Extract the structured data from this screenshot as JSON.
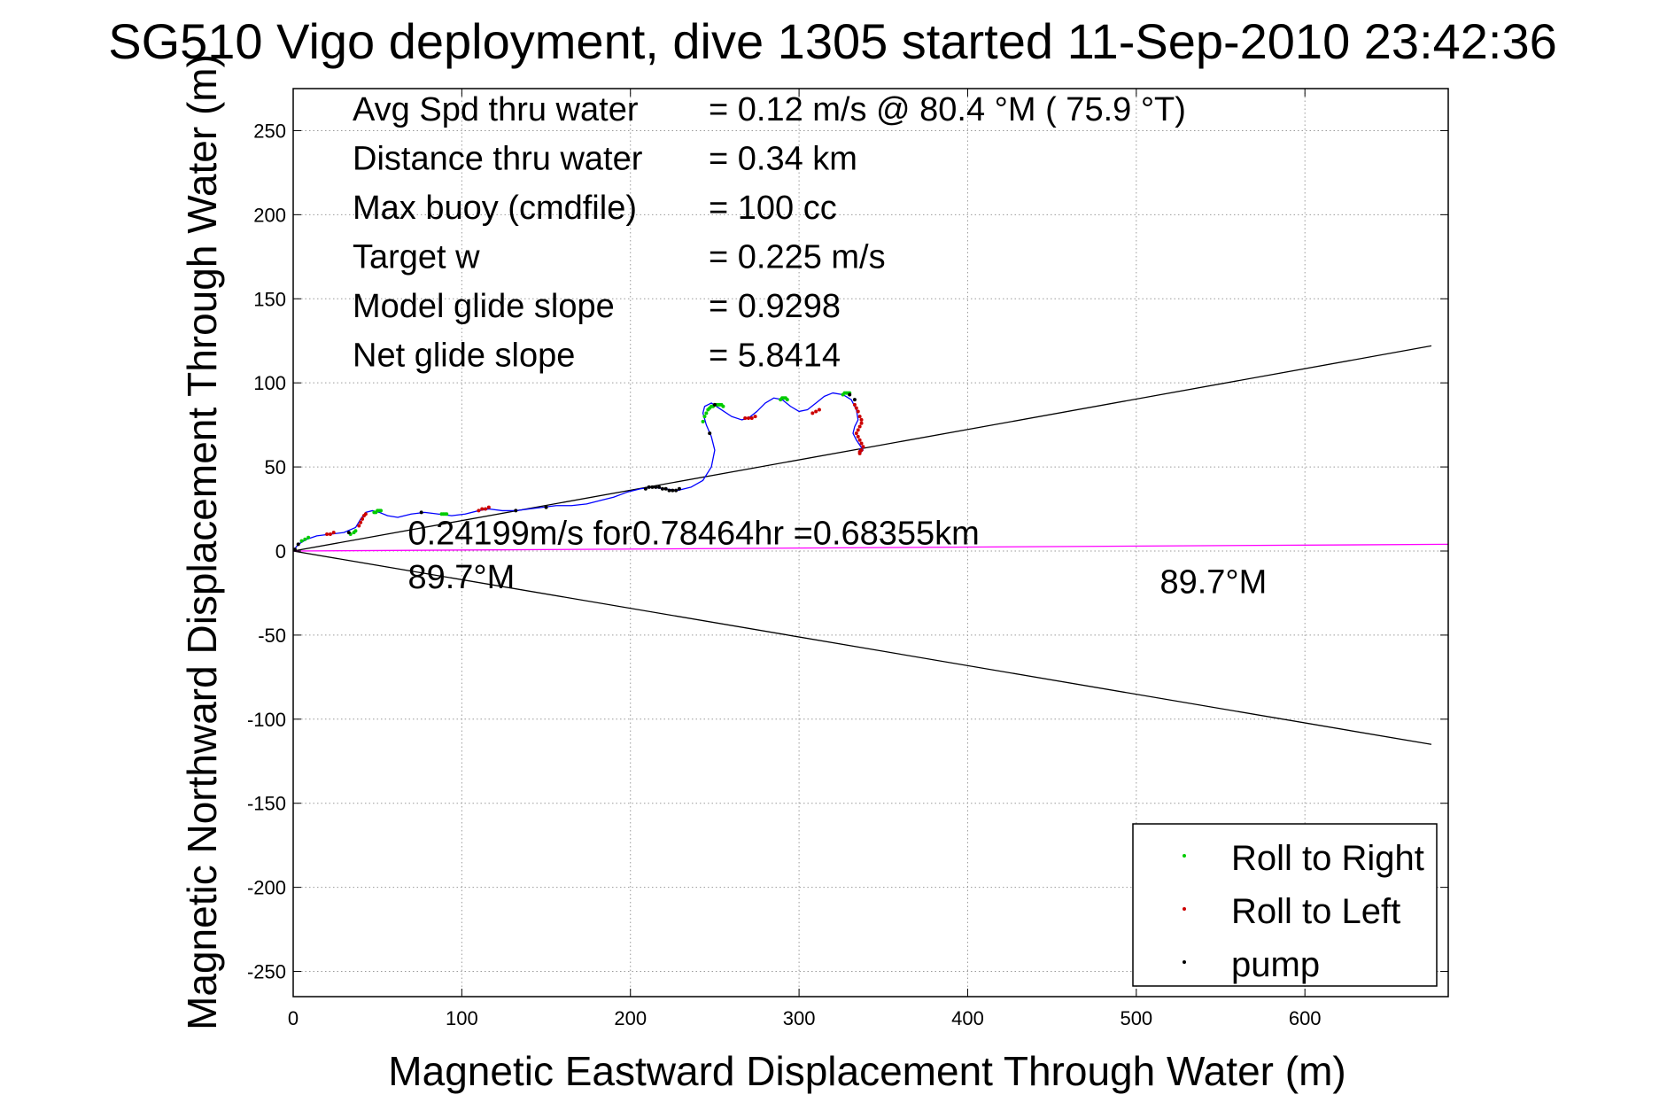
{
  "chart_data": {
    "type": "scatter",
    "title": "SG510 Vigo deployment, dive 1305 started 11-Sep-2010 23:42:36",
    "xlabel": "Magnetic Eastward Displacement Through Water (m)",
    "ylabel": "Magnetic Northward Displacement Through Water (m)",
    "xlim": [
      0,
      685
    ],
    "ylim": [
      -265,
      275
    ],
    "xticks": [
      0,
      100,
      200,
      300,
      400,
      500,
      600
    ],
    "yticks": [
      250,
      200,
      150,
      100,
      50,
      0,
      -50,
      -100,
      -150,
      -200,
      -250
    ],
    "grid": true,
    "legend_position": "bottom-right",
    "info_lines": [
      {
        "label": "Avg Spd thru water",
        "value": "=  0.12 m/s @  80.4 °M ( 75.9 °T)"
      },
      {
        "label": "Distance thru water",
        "value": "=  0.34 km"
      },
      {
        "label": "Max buoy (cmdfile)",
        "value": "= 100 cc"
      },
      {
        "label": "Target w",
        "value": "= 0.225 m/s"
      },
      {
        "label": "Model glide slope",
        "value": "= 0.9298"
      },
      {
        "label": "Net glide slope",
        "value": "= 5.8414"
      }
    ],
    "annotations": [
      {
        "text": "0.24199m/s for0.78464hr =0.68355km",
        "x": 68,
        "y": 4
      },
      {
        "text": "89.7°M",
        "x": 68,
        "y": -22
      },
      {
        "text": "89.7°M",
        "x": 514,
        "y": -25
      }
    ],
    "reference_lines": [
      {
        "name": "upper-bound-line",
        "x": [
          0,
          675
        ],
        "y": [
          0,
          122
        ],
        "color": "#000000"
      },
      {
        "name": "lower-bound-line",
        "x": [
          0,
          675
        ],
        "y": [
          0,
          -115
        ],
        "color": "#000000"
      },
      {
        "name": "current-line",
        "x": [
          0,
          685
        ],
        "y": [
          0,
          4
        ],
        "color": "#ff00ff"
      }
    ],
    "track": {
      "color": "#0000ff",
      "x": [
        0,
        3,
        8,
        14,
        22,
        30,
        37,
        40,
        43,
        47,
        51,
        56,
        62,
        70,
        78,
        86,
        94,
        102,
        110,
        116,
        124,
        132,
        140,
        148,
        156,
        165,
        174,
        182,
        190,
        198,
        206,
        213,
        220,
        228,
        236,
        243,
        248,
        250,
        248,
        245,
        243,
        244,
        248,
        254,
        260,
        266,
        270,
        275,
        280,
        285,
        290,
        295,
        300,
        305,
        310,
        315,
        320,
        326,
        331,
        334,
        335,
        333,
        332,
        334,
        336,
        338,
        336,
        336
      ],
      "y": [
        0,
        4,
        7,
        9,
        10,
        11,
        14,
        19,
        23,
        24,
        23,
        21,
        20,
        22,
        23,
        22,
        21,
        22,
        24,
        25,
        24,
        24,
        25,
        26,
        27,
        27,
        28,
        30,
        32,
        35,
        37,
        38,
        37,
        36,
        38,
        42,
        50,
        60,
        68,
        75,
        82,
        86,
        88,
        84,
        80,
        78,
        79,
        83,
        88,
        91,
        90,
        86,
        83,
        84,
        88,
        92,
        94,
        93,
        90,
        84,
        78,
        74,
        70,
        66,
        63,
        60,
        58,
        61
      ]
    },
    "series": [
      {
        "name": "Roll to Right",
        "color": "#00cc00",
        "x": [
          5,
          7,
          9,
          34,
          36,
          37,
          48,
          49,
          50,
          51,
          52,
          88,
          89,
          90,
          91,
          243,
          244,
          245,
          246,
          247,
          248,
          249,
          250,
          251,
          252,
          253,
          254,
          255,
          289,
          290,
          291,
          292,
          293,
          326,
          327,
          328,
          329,
          330
        ],
        "y": [
          6,
          7,
          8,
          10,
          11,
          12,
          23,
          23,
          24,
          24,
          24,
          22,
          22,
          22,
          22,
          77,
          80,
          82,
          84,
          85,
          86,
          86,
          87,
          87,
          87,
          87,
          87,
          86,
          90,
          91,
          91,
          91,
          90,
          93,
          94,
          94,
          94,
          94
        ]
      },
      {
        "name": "Roll to Left",
        "color": "#cc0000",
        "x": [
          20,
          22,
          24,
          39,
          40,
          41,
          42,
          43,
          110,
          112,
          114,
          116,
          268,
          270,
          272,
          274,
          308,
          310,
          312,
          333,
          334,
          335,
          336,
          337,
          337,
          336,
          335,
          334,
          335,
          336,
          337,
          338,
          337,
          336,
          336
        ],
        "y": [
          10,
          10,
          11,
          15,
          17,
          19,
          21,
          22,
          24,
          25,
          25,
          26,
          79,
          79,
          79,
          80,
          82,
          83,
          84,
          87,
          85,
          83,
          80,
          78,
          76,
          74,
          72,
          70,
          68,
          66,
          64,
          62,
          60,
          59,
          58
        ]
      },
      {
        "name": "pump",
        "color": "#000000",
        "x": [
          1,
          3,
          33,
          76,
          132,
          150,
          209,
          211,
          213,
          215,
          217,
          219,
          221,
          223,
          225,
          227,
          229,
          247,
          250,
          330,
          333
        ],
        "y": [
          1,
          4,
          11,
          23,
          24,
          26,
          37,
          38,
          38,
          38,
          38,
          37,
          37,
          36,
          36,
          36,
          37,
          70,
          87,
          93,
          90
        ]
      }
    ]
  }
}
